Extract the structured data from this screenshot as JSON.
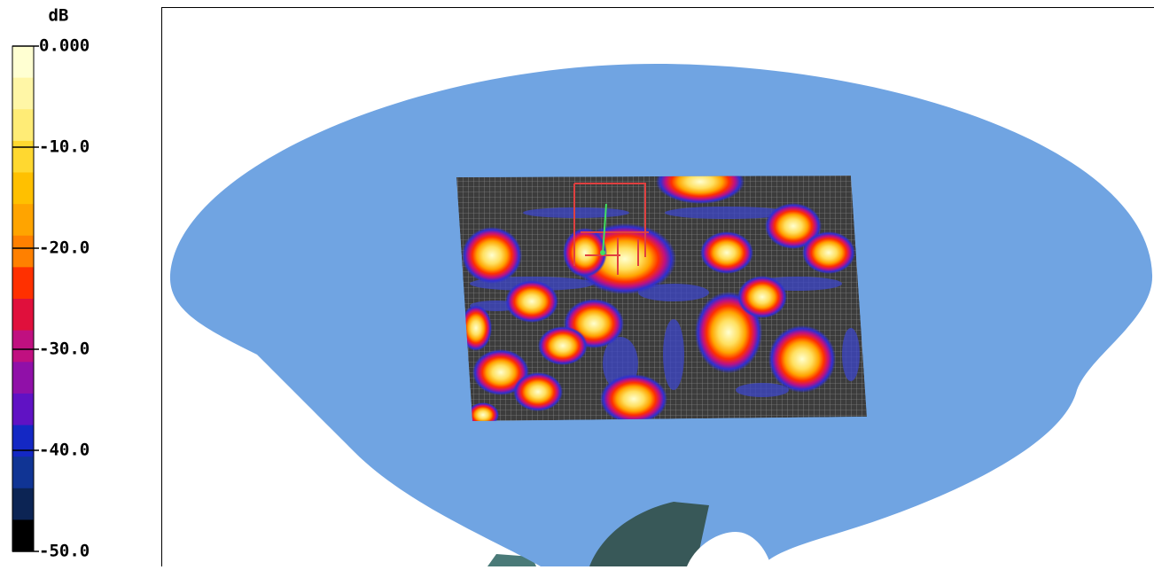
{
  "colorbar": {
    "unit": "dB",
    "range": [
      0,
      -50
    ],
    "ticks": [
      {
        "value": 0,
        "label": "0.000"
      },
      {
        "value": -10,
        "label": "-10.0"
      },
      {
        "value": -20,
        "label": "-20.0"
      },
      {
        "value": -30,
        "label": "-30.0"
      },
      {
        "value": -40,
        "label": "-40.0"
      },
      {
        "value": -50,
        "label": "-50.0"
      }
    ],
    "colors": [
      "#ffffd2",
      "#fff6a6",
      "#ffec76",
      "#ffd830",
      "#ffc000",
      "#ffa400",
      "#ff8000",
      "#ff3000",
      "#e0103c",
      "#c01080",
      "#9010a8",
      "#6012c4",
      "#1428c4",
      "#103494",
      "#0c2454",
      "#000000"
    ]
  }
}
